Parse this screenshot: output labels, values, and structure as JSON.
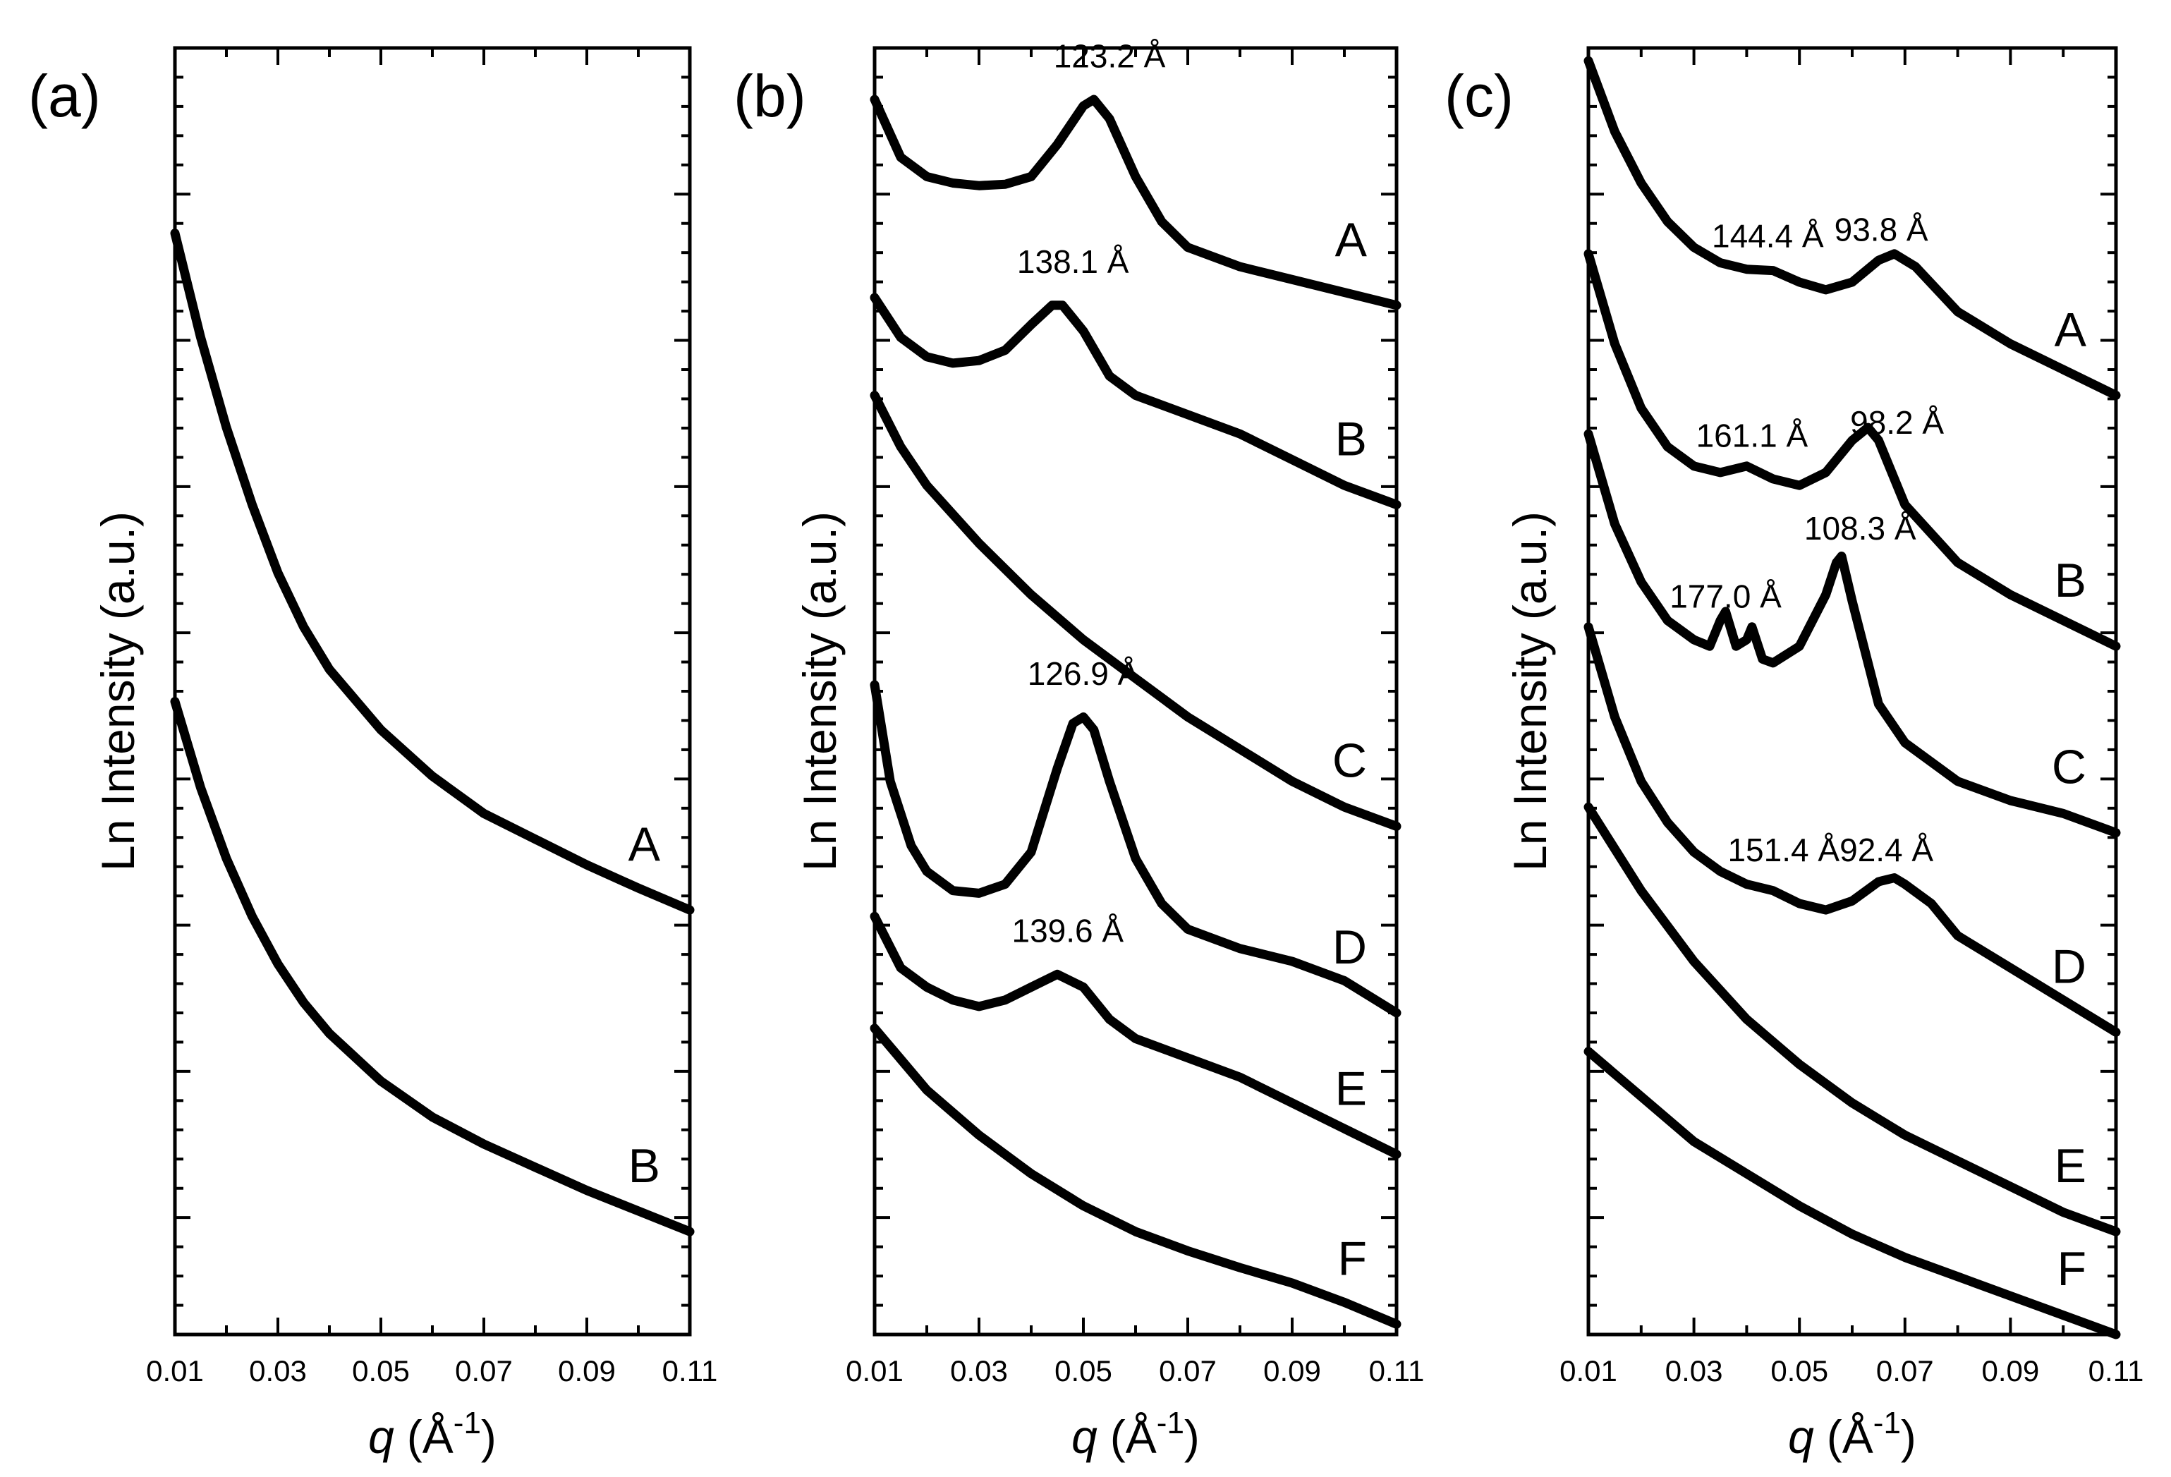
{
  "chart_data": [
    {
      "type": "line",
      "panel": "(a)",
      "xlabel": "q",
      "xunit": "(Å",
      "xunit_exp": "-1",
      "xunit_close": ")",
      "ylabel": "Ln Intensity (a.u.)",
      "xlim": [
        0.01,
        0.11
      ],
      "ylim": [
        0,
        1
      ],
      "x_ticks": [
        "0.01",
        "0.03",
        "0.05",
        "0.07",
        "0.09",
        "0.11"
      ],
      "series": [
        {
          "name": "A",
          "x": [
            0.01,
            0.015,
            0.02,
            0.025,
            0.03,
            0.035,
            0.04,
            0.05,
            0.06,
            0.07,
            0.08,
            0.09,
            0.1,
            0.11
          ],
          "y": [
            0.856,
            0.775,
            0.705,
            0.645,
            0.592,
            0.55,
            0.517,
            0.47,
            0.434,
            0.405,
            0.385,
            0.365,
            0.347,
            0.33
          ]
        },
        {
          "name": "B",
          "x": [
            0.01,
            0.015,
            0.02,
            0.025,
            0.03,
            0.035,
            0.04,
            0.05,
            0.06,
            0.07,
            0.08,
            0.09,
            0.1,
            0.11
          ],
          "y": [
            0.492,
            0.425,
            0.37,
            0.325,
            0.288,
            0.258,
            0.234,
            0.197,
            0.169,
            0.148,
            0.13,
            0.112,
            0.096,
            0.08
          ]
        }
      ],
      "annotations": []
    },
    {
      "type": "line",
      "panel": "(b)",
      "xlabel": "q",
      "xunit": "(Å",
      "xunit_exp": "-1",
      "xunit_close": ")",
      "ylabel": "Ln Intensity (a.u.)",
      "xlim": [
        0.01,
        0.11
      ],
      "ylim": [
        0,
        1
      ],
      "x_ticks": [
        "0.01",
        "0.03",
        "0.05",
        "0.07",
        "0.09",
        "0.11"
      ],
      "series": [
        {
          "name": "A",
          "x": [
            0.01,
            0.015,
            0.02,
            0.025,
            0.03,
            0.035,
            0.04,
            0.045,
            0.05,
            0.052,
            0.055,
            0.06,
            0.065,
            0.07,
            0.08,
            0.09,
            0.1,
            0.11
          ],
          "y": [
            0.96,
            0.915,
            0.9,
            0.895,
            0.893,
            0.894,
            0.9,
            0.925,
            0.955,
            0.96,
            0.945,
            0.9,
            0.865,
            0.845,
            0.83,
            0.82,
            0.81,
            0.8
          ]
        },
        {
          "name": "B",
          "x": [
            0.01,
            0.015,
            0.02,
            0.025,
            0.03,
            0.035,
            0.04,
            0.044,
            0.046,
            0.05,
            0.055,
            0.06,
            0.07,
            0.08,
            0.09,
            0.1,
            0.11
          ],
          "y": [
            0.806,
            0.775,
            0.76,
            0.755,
            0.757,
            0.765,
            0.785,
            0.8,
            0.8,
            0.78,
            0.745,
            0.73,
            0.715,
            0.7,
            0.68,
            0.66,
            0.645
          ]
        },
        {
          "name": "C",
          "x": [
            0.01,
            0.015,
            0.02,
            0.03,
            0.04,
            0.05,
            0.06,
            0.07,
            0.08,
            0.09,
            0.1,
            0.11
          ],
          "y": [
            0.73,
            0.69,
            0.66,
            0.615,
            0.575,
            0.54,
            0.51,
            0.48,
            0.455,
            0.43,
            0.41,
            0.395
          ]
        },
        {
          "name": "D",
          "x": [
            0.01,
            0.013,
            0.017,
            0.02,
            0.025,
            0.03,
            0.035,
            0.04,
            0.045,
            0.048,
            0.05,
            0.052,
            0.055,
            0.06,
            0.065,
            0.07,
            0.08,
            0.09,
            0.1,
            0.11
          ],
          "y": [
            0.505,
            0.43,
            0.38,
            0.36,
            0.345,
            0.343,
            0.35,
            0.375,
            0.44,
            0.475,
            0.48,
            0.47,
            0.43,
            0.37,
            0.335,
            0.315,
            0.3,
            0.29,
            0.275,
            0.25
          ]
        },
        {
          "name": "E",
          "x": [
            0.01,
            0.015,
            0.02,
            0.025,
            0.03,
            0.035,
            0.04,
            0.045,
            0.05,
            0.055,
            0.06,
            0.07,
            0.08,
            0.09,
            0.1,
            0.11
          ],
          "y": [
            0.325,
            0.285,
            0.27,
            0.26,
            0.255,
            0.26,
            0.27,
            0.28,
            0.27,
            0.245,
            0.23,
            0.215,
            0.2,
            0.18,
            0.16,
            0.14
          ]
        },
        {
          "name": "F",
          "x": [
            0.01,
            0.02,
            0.03,
            0.04,
            0.05,
            0.06,
            0.07,
            0.08,
            0.09,
            0.1,
            0.11
          ],
          "y": [
            0.238,
            0.19,
            0.155,
            0.125,
            0.1,
            0.08,
            0.065,
            0.052,
            0.04,
            0.025,
            0.008
          ]
        }
      ],
      "annotations": [
        {
          "text": "123.2 Å",
          "x": 0.055,
          "y": 0.985
        },
        {
          "text": "138.1 Å",
          "x": 0.048,
          "y": 0.825
        },
        {
          "text": "126.9 Å",
          "x": 0.05,
          "y": 0.505
        },
        {
          "text": "139.6 Å",
          "x": 0.047,
          "y": 0.305
        }
      ]
    },
    {
      "type": "line",
      "panel": "(c)",
      "xlabel": "q",
      "xunit": "(Å",
      "xunit_exp": "-1",
      "xunit_close": ")",
      "ylabel": "Ln Intensity (a.u.)",
      "xlim": [
        0.01,
        0.11
      ],
      "ylim": [
        0,
        1
      ],
      "x_ticks": [
        "0.01",
        "0.03",
        "0.05",
        "0.07",
        "0.09",
        "0.11"
      ],
      "series": [
        {
          "name": "A",
          "x": [
            0.01,
            0.015,
            0.02,
            0.025,
            0.03,
            0.035,
            0.04,
            0.045,
            0.05,
            0.055,
            0.06,
            0.065,
            0.068,
            0.072,
            0.08,
            0.09,
            0.1,
            0.11
          ],
          "y": [
            0.99,
            0.935,
            0.895,
            0.865,
            0.845,
            0.833,
            0.828,
            0.827,
            0.818,
            0.812,
            0.818,
            0.835,
            0.84,
            0.83,
            0.795,
            0.77,
            0.75,
            0.73
          ]
        },
        {
          "name": "B",
          "x": [
            0.01,
            0.015,
            0.02,
            0.025,
            0.03,
            0.035,
            0.04,
            0.045,
            0.05,
            0.055,
            0.06,
            0.063,
            0.065,
            0.07,
            0.08,
            0.09,
            0.1,
            0.11
          ],
          "y": [
            0.84,
            0.77,
            0.72,
            0.69,
            0.675,
            0.67,
            0.675,
            0.665,
            0.66,
            0.67,
            0.695,
            0.705,
            0.695,
            0.645,
            0.6,
            0.575,
            0.555,
            0.535
          ]
        },
        {
          "name": "C",
          "x": [
            0.01,
            0.015,
            0.02,
            0.025,
            0.03,
            0.033,
            0.035,
            0.036,
            0.038,
            0.04,
            0.041,
            0.043,
            0.045,
            0.05,
            0.055,
            0.057,
            0.058,
            0.06,
            0.065,
            0.07,
            0.08,
            0.09,
            0.1,
            0.11
          ],
          "y": [
            0.7,
            0.63,
            0.585,
            0.555,
            0.54,
            0.535,
            0.555,
            0.562,
            0.535,
            0.54,
            0.55,
            0.525,
            0.522,
            0.535,
            0.575,
            0.6,
            0.605,
            0.57,
            0.49,
            0.46,
            0.43,
            0.415,
            0.405,
            0.39
          ]
        },
        {
          "name": "D",
          "x": [
            0.01,
            0.015,
            0.02,
            0.025,
            0.03,
            0.035,
            0.04,
            0.045,
            0.05,
            0.055,
            0.06,
            0.065,
            0.068,
            0.07,
            0.075,
            0.08,
            0.09,
            0.1,
            0.11
          ],
          "y": [
            0.55,
            0.48,
            0.43,
            0.398,
            0.375,
            0.36,
            0.35,
            0.345,
            0.335,
            0.33,
            0.337,
            0.352,
            0.355,
            0.35,
            0.335,
            0.31,
            0.285,
            0.26,
            0.235
          ]
        },
        {
          "name": "E",
          "x": [
            0.01,
            0.02,
            0.03,
            0.04,
            0.05,
            0.06,
            0.07,
            0.08,
            0.09,
            0.1,
            0.11
          ],
          "y": [
            0.41,
            0.345,
            0.29,
            0.245,
            0.21,
            0.18,
            0.155,
            0.135,
            0.115,
            0.095,
            0.08
          ]
        },
        {
          "name": "F",
          "x": [
            0.01,
            0.02,
            0.03,
            0.04,
            0.05,
            0.06,
            0.07,
            0.08,
            0.09,
            0.1,
            0.11
          ],
          "y": [
            0.22,
            0.185,
            0.15,
            0.125,
            0.1,
            0.078,
            0.06,
            0.045,
            0.03,
            0.015,
            0.0
          ]
        }
      ],
      "annotations": [
        {
          "text": "144.4 Å",
          "x": 0.044,
          "y": 0.845
        },
        {
          "text": "93.8 Å",
          "x": 0.0655,
          "y": 0.85
        },
        {
          "text": "161.1 Å",
          "x": 0.041,
          "y": 0.69
        },
        {
          "text": "98.2 Å",
          "x": 0.0685,
          "y": 0.7
        },
        {
          "text": "177.0 Å",
          "x": 0.036,
          "y": 0.565
        },
        {
          "text": "108.3 Å",
          "x": 0.0615,
          "y": 0.618
        },
        {
          "text": "151.4 Å",
          "x": 0.047,
          "y": 0.368
        },
        {
          "text": "92.4 Å",
          "x": 0.0665,
          "y": 0.368
        }
      ]
    }
  ]
}
